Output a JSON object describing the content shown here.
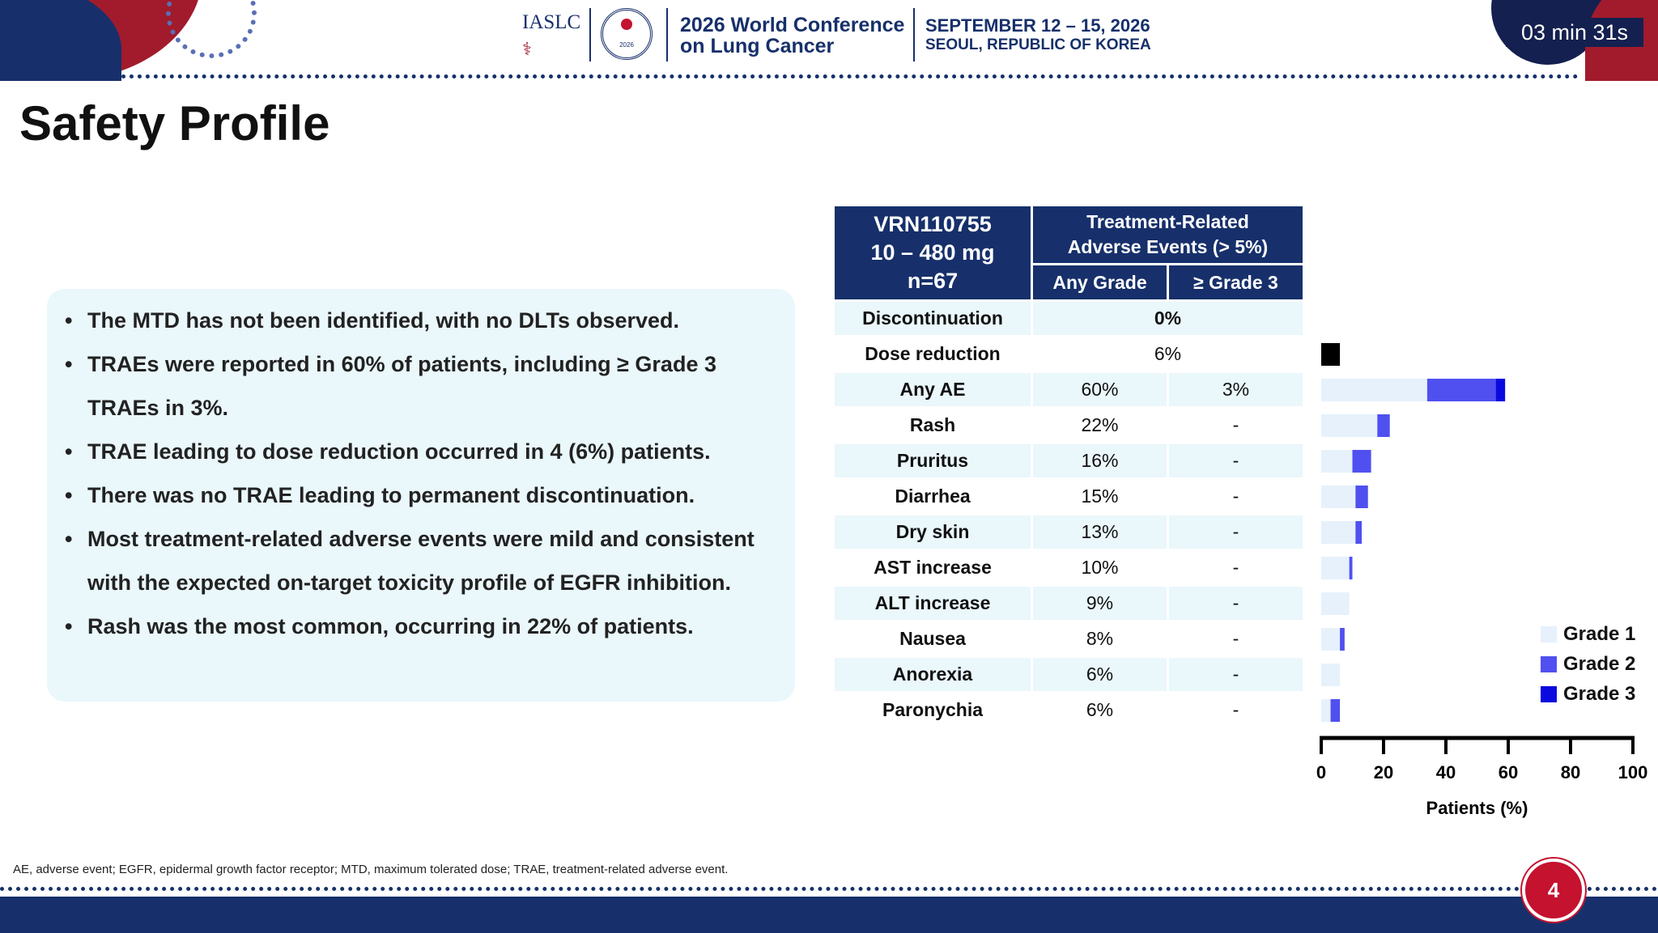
{
  "header": {
    "org": "IASLC",
    "conference_title_line1": "2026 World Conference",
    "conference_title_line2": "on Lung Cancer",
    "date": "SEPTEMBER 12 – 15, 2026",
    "location": "SEOUL, REPUBLIC OF KOREA",
    "seal_text": "2026",
    "timer": "03 min 31s"
  },
  "slide": {
    "title": "Safety Profile",
    "page_number": "4",
    "footnote": "AE, adverse event; EGFR, epidermal growth factor receptor; MTD, maximum tolerated dose; TRAE, treatment-related adverse event."
  },
  "bullets": [
    "The MTD has not been identified, with no DLTs observed.",
    "TRAEs were reported in 60% of patients, including ≥ Grade 3 TRAEs in 3%.",
    "TRAE leading to dose reduction occurred in 4 (6%) patients.",
    "There was no TRAE leading to permanent discontinuation.",
    "Most treatment-related adverse events were mild and consistent with the expected on-target toxicity profile of EGFR inhibition.",
    "Rash was the most common, occurring in 22% of patients."
  ],
  "table": {
    "drug_line1": "VRN110755",
    "drug_line2": "10 – 480 mg",
    "drug_line3": "n=67",
    "group_header_line1": "Treatment-Related",
    "group_header_line2": "Adverse Events (> 5%)",
    "col_any": "Any Grade",
    "col_g3": "≥ Grade 3",
    "disc_label": "Discontinuation",
    "disc_value": "0%",
    "dose_label": "Dose reduction",
    "dose_value": "6%",
    "rows": [
      {
        "name": "Any AE",
        "any": "60%",
        "g3": "3%"
      },
      {
        "name": "Rash",
        "any": "22%",
        "g3": "-"
      },
      {
        "name": "Pruritus",
        "any": "16%",
        "g3": "-"
      },
      {
        "name": "Diarrhea",
        "any": "15%",
        "g3": "-"
      },
      {
        "name": "Dry skin",
        "any": "13%",
        "g3": "-"
      },
      {
        "name": "AST increase",
        "any": "10%",
        "g3": "-"
      },
      {
        "name": "ALT increase",
        "any": "9%",
        "g3": "-"
      },
      {
        "name": "Nausea",
        "any": "8%",
        "g3": "-"
      },
      {
        "name": "Anorexia",
        "any": "6%",
        "g3": "-"
      },
      {
        "name": "Paronychia",
        "any": "6%",
        "g3": "-"
      }
    ]
  },
  "chart_data": {
    "type": "bar",
    "orientation": "horizontal",
    "stacked": true,
    "categories": [
      "Dose reduction",
      "Any AE",
      "Rash",
      "Pruritus",
      "Diarrhea",
      "Dry skin",
      "AST increase",
      "ALT increase",
      "Nausea",
      "Anorexia",
      "Paronychia"
    ],
    "series": [
      {
        "name": "Grade 1",
        "color": "#e6f1fb",
        "values": [
          0,
          34,
          18,
          10,
          11,
          11,
          9,
          9,
          6,
          6,
          3
        ]
      },
      {
        "name": "Grade 2",
        "color": "#5050f0",
        "values": [
          0,
          22,
          4,
          6,
          4,
          2,
          1,
          0,
          1.5,
          0,
          3
        ]
      },
      {
        "name": "Grade 3",
        "color": "#0a0ae0",
        "values": [
          0,
          3,
          0,
          0,
          0,
          0,
          0,
          0,
          0,
          0,
          0
        ]
      },
      {
        "name": "",
        "color": "#000000",
        "values": [
          6,
          0,
          0,
          0,
          0,
          0,
          0,
          0,
          0,
          0,
          0
        ]
      }
    ],
    "xlabel": "Patients  (%)",
    "xlim": [
      0,
      100
    ],
    "xticks": [
      "0",
      "20",
      "40",
      "60",
      "80",
      "100"
    ],
    "legend": [
      "Grade 1",
      "Grade 2",
      "Grade 3"
    ],
    "legend_position": "right"
  }
}
